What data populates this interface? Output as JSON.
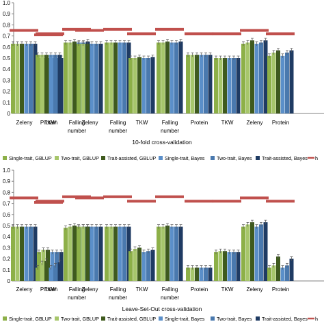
{
  "legend_entries": [
    {
      "label": "Single-trait, GBLUP",
      "color": "#8DB048",
      "kind": "bar"
    },
    {
      "label": "Two-trait, GBLUP",
      "color": "#A7C66B",
      "kind": "bar"
    },
    {
      "label": "Trait-assisted, GBLUP",
      "color": "#3F5A1E",
      "kind": "bar"
    },
    {
      "label": "Single-trait, Bayes",
      "color": "#5B8FC9",
      "kind": "bar"
    },
    {
      "label": "Two-trait, Bayes",
      "color": "#4A79AE",
      "kind": "bar"
    },
    {
      "label": "Trait-assisted, Bayes",
      "color": "#1F3B63",
      "kind": "bar"
    },
    {
      "label": "h",
      "color": "#C0504D",
      "kind": "line"
    }
  ],
  "chart_data": [
    {
      "type": "bar",
      "title": "10-fold cross-validation",
      "ylim": [
        0,
        1.0
      ],
      "yticks": [
        "0",
        "0.1",
        "0.2",
        "0.3",
        "0.4",
        "0.5",
        "0.6",
        "0.7",
        "0.8",
        "0.9",
        "1.0"
      ],
      "grid": false,
      "legend_position": "bottom",
      "categories": [
        [
          "Zeleny",
          "TKW"
        ],
        [
          "Protein",
          "Falling number"
        ],
        [
          "Zeleny",
          "Falling number"
        ],
        [
          "TKW",
          "Falling number"
        ],
        [
          "Protein",
          "TKW"
        ],
        [
          "Zeleny",
          "Protein"
        ]
      ],
      "bar_values": [
        [
          [
            0.63,
            0.63,
            0.63,
            0.63,
            0.63,
            0.63
          ],
          [
            0.5,
            0.5,
            0.5,
            0.5,
            0.5,
            0.5
          ]
        ],
        [
          [
            0.53,
            0.53,
            0.53,
            0.53,
            0.53,
            0.53
          ],
          [
            0.64,
            0.64,
            0.65,
            0.64,
            0.64,
            0.65
          ]
        ],
        [
          [
            0.63,
            0.63,
            0.63,
            0.63,
            0.63,
            0.63
          ],
          [
            0.64,
            0.64,
            0.64,
            0.64,
            0.64,
            0.64
          ]
        ],
        [
          [
            0.5,
            0.5,
            0.51,
            0.5,
            0.5,
            0.51
          ],
          [
            0.64,
            0.64,
            0.65,
            0.64,
            0.64,
            0.65
          ]
        ],
        [
          [
            0.53,
            0.53,
            0.53,
            0.53,
            0.53,
            0.53
          ],
          [
            0.5,
            0.5,
            0.5,
            0.5,
            0.5,
            0.5
          ]
        ],
        [
          [
            0.63,
            0.64,
            0.66,
            0.63,
            0.64,
            0.66
          ],
          [
            0.52,
            0.55,
            0.57,
            0.52,
            0.55,
            0.57
          ]
        ]
      ],
      "heritability": [
        [
          0.75,
          0.72
        ],
        [
          0.71,
          0.76
        ],
        [
          0.75,
          0.76
        ],
        [
          0.72,
          0.76
        ],
        [
          0.72,
          0.72
        ],
        [
          0.75,
          0.72
        ]
      ]
    },
    {
      "type": "bar",
      "title": "Leave-Set-Out cross-validation",
      "ylim": [
        0,
        1.0
      ],
      "yticks": [
        "0",
        "0.1",
        "0.2",
        "0.3",
        "0.4",
        "0.5",
        "0.6",
        "0.7",
        "0.8",
        "0.9",
        "1.0"
      ],
      "grid": false,
      "legend_position": "bottom",
      "categories": [
        [
          "Zeleny",
          "TKW"
        ],
        [
          "Protein",
          "Falling number"
        ],
        [
          "Zeleny",
          "Falling number"
        ],
        [
          "TKW",
          "Falling number"
        ],
        [
          "Protein",
          "TKW"
        ],
        [
          "Zeleny",
          "Protein"
        ]
      ],
      "bar_values": [
        [
          [
            0.49,
            0.49,
            0.49,
            0.49,
            0.49,
            0.49
          ],
          [
            0.26,
            0.28,
            0.28,
            0.26,
            0.26,
            0.26
          ]
        ],
        [
          [
            0.12,
            0.16,
            0.18,
            0.12,
            0.14,
            0.17
          ],
          [
            0.48,
            0.49,
            0.5,
            0.48,
            0.49,
            0.49
          ]
        ],
        [
          [
            0.49,
            0.49,
            0.49,
            0.49,
            0.49,
            0.49
          ],
          [
            0.49,
            0.49,
            0.49,
            0.49,
            0.49,
            0.49
          ]
        ],
        [
          [
            0.27,
            0.29,
            0.3,
            0.26,
            0.27,
            0.28
          ],
          [
            0.49,
            0.49,
            0.5,
            0.49,
            0.49,
            0.49
          ]
        ],
        [
          [
            0.12,
            0.12,
            0.12,
            0.12,
            0.12,
            0.12
          ],
          [
            0.26,
            0.27,
            0.27,
            0.26,
            0.26,
            0.26
          ]
        ],
        [
          [
            0.49,
            0.51,
            0.53,
            0.49,
            0.51,
            0.53
          ],
          [
            0.12,
            0.14,
            0.22,
            0.12,
            0.14,
            0.2
          ]
        ]
      ],
      "heritability": [
        [
          0.75,
          0.72
        ],
        [
          0.71,
          0.76
        ],
        [
          0.75,
          0.76
        ],
        [
          0.72,
          0.76
        ],
        [
          0.72,
          0.72
        ],
        [
          0.75,
          0.72
        ]
      ]
    }
  ]
}
